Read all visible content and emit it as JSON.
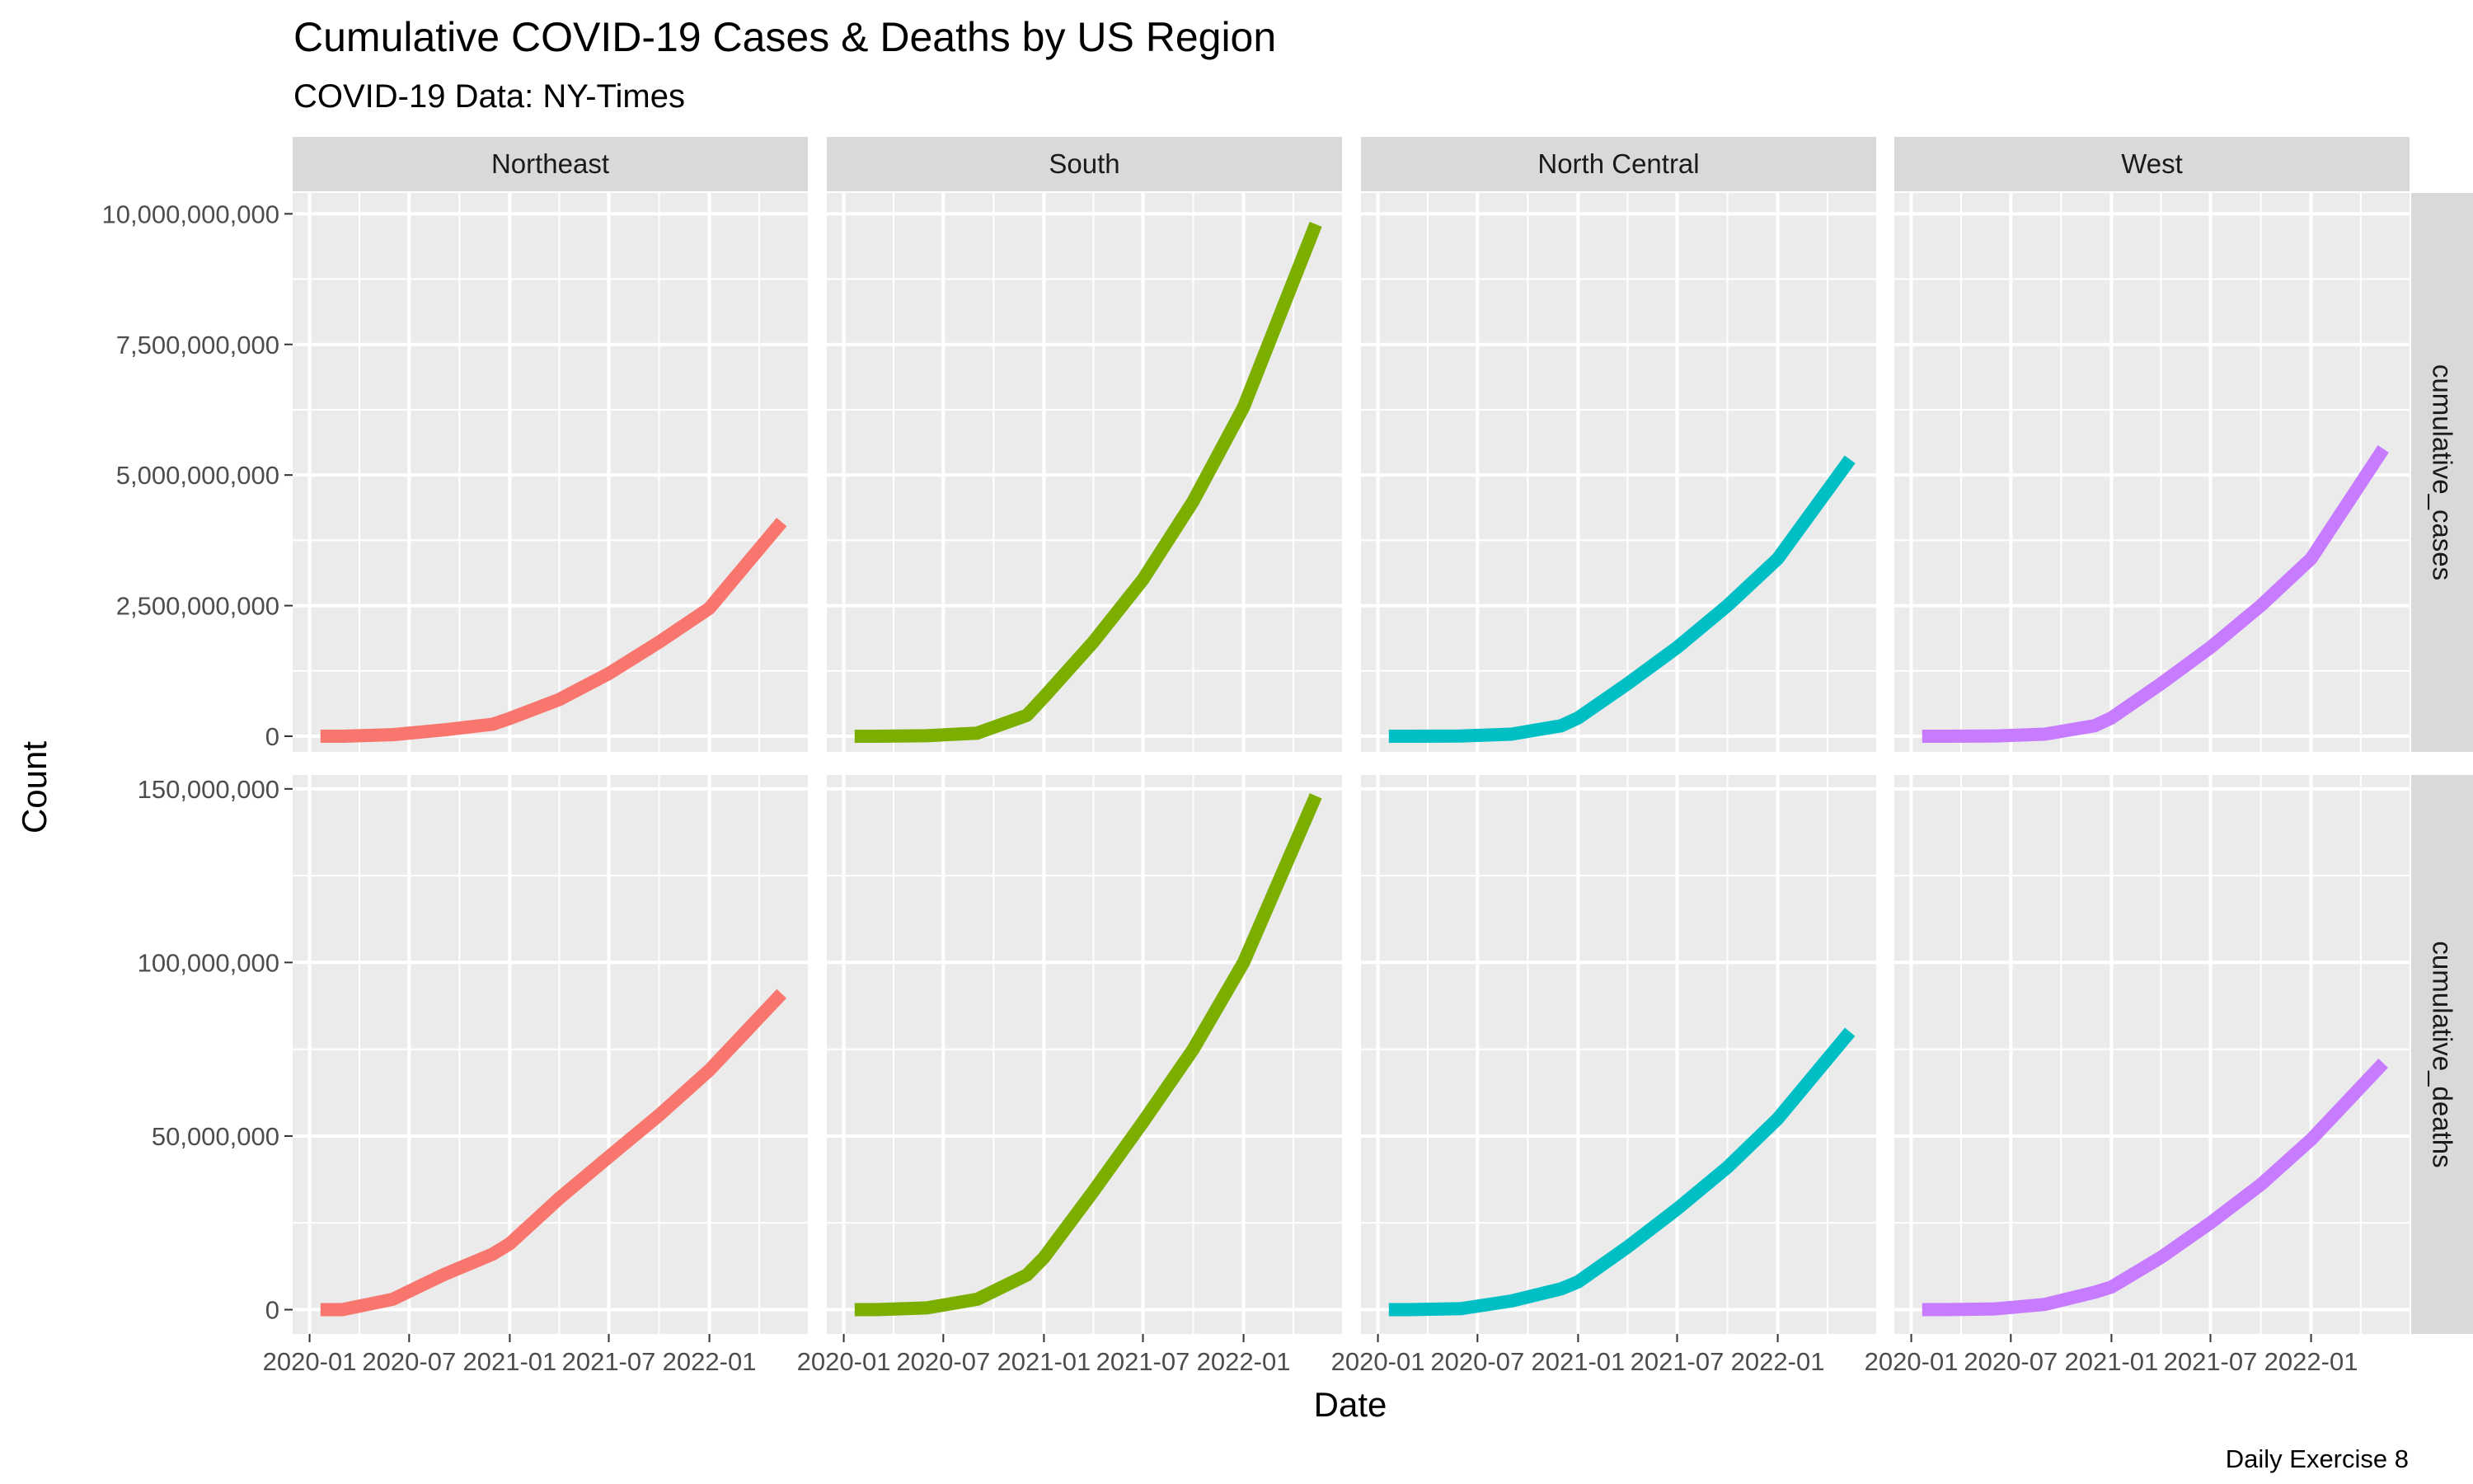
{
  "title": "Cumulative COVID-19 Cases & Deaths by US Region",
  "subtitle": "COVID-19 Data: NY-Times",
  "caption": "Daily Exercise 8",
  "chart_data": {
    "type": "line",
    "facet": {
      "columns": [
        "Northeast",
        "South",
        "North Central",
        "West"
      ],
      "rows": [
        "cumulative_cases",
        "cumulative_deaths"
      ]
    },
    "xlabel": "Date",
    "ylabel": "Count",
    "x_ticks": [
      "2020-01",
      "2020-07",
      "2021-01",
      "2021-07",
      "2022-01"
    ],
    "xlim": [
      "2019-12-01",
      "2022-06-30"
    ],
    "x": [
      "2020-01-21",
      "2020-03-01",
      "2020-06-01",
      "2020-09-01",
      "2020-12-01",
      "2021-01-01",
      "2021-04-01",
      "2021-07-01",
      "2021-10-01",
      "2022-01-01",
      "2022-05-13"
    ],
    "grid": true,
    "legend": "none",
    "colors": {
      "Northeast": "#F8766D",
      "South": "#7CAE00",
      "North Central": "#00BFC4",
      "West": "#C77CFF"
    },
    "panels": [
      {
        "row": "cumulative_cases",
        "ylim": [
          -300000000,
          10400000000
        ],
        "y_ticks": [
          {
            "value": 0,
            "label": "0"
          },
          {
            "value": 2500000000,
            "label": "2,500,000,000"
          },
          {
            "value": 5000000000,
            "label": "5,000,000,000"
          },
          {
            "value": 7500000000,
            "label": "7,500,000,000"
          },
          {
            "value": 10000000000,
            "label": "10,000,000,000"
          }
        ],
        "series": [
          {
            "name": "Northeast",
            "values": [
              0,
              0,
              30000000,
              120000000,
              230000000,
              340000000,
              700000000,
              1200000000,
              1800000000,
              2450000000,
              4100000000
            ]
          },
          {
            "name": "South",
            "values": [
              0,
              0,
              10000000,
              60000000,
              400000000,
              750000000,
              1800000000,
              3000000000,
              4500000000,
              6300000000,
              9800000000
            ]
          },
          {
            "name": "North Central",
            "values": [
              0,
              0,
              5000000,
              40000000,
              200000000,
              350000000,
              1000000000,
              1700000000,
              2500000000,
              3400000000,
              5300000000
            ]
          },
          {
            "name": "West",
            "values": [
              0,
              0,
              5000000,
              40000000,
              200000000,
              350000000,
              1000000000,
              1700000000,
              2500000000,
              3400000000,
              5500000000
            ]
          }
        ]
      },
      {
        "row": "cumulative_deaths",
        "ylim": [
          -7000000,
          154000000
        ],
        "y_ticks": [
          {
            "value": 0,
            "label": "0"
          },
          {
            "value": 50000000,
            "label": "50,000,000"
          },
          {
            "value": 100000000,
            "label": "100,000,000"
          },
          {
            "value": 150000000,
            "label": "150,000,000"
          }
        ],
        "series": [
          {
            "name": "Northeast",
            "values": [
              0,
              0,
              3000000,
              10000000,
              16000000,
              19000000,
              32000000,
              44000000,
              56000000,
              69000000,
              91000000
            ]
          },
          {
            "name": "South",
            "values": [
              0,
              0,
              500000,
              3000000,
              10000000,
              15000000,
              34000000,
              54000000,
              75000000,
              100000000,
              148000000
            ]
          },
          {
            "name": "North Central",
            "values": [
              0,
              0,
              300000,
              2500000,
              6000000,
              8000000,
              18000000,
              29000000,
              41000000,
              55000000,
              80000000
            ]
          },
          {
            "name": "West",
            "values": [
              0,
              0,
              200000,
              1500000,
              5000000,
              6500000,
              15000000,
              25000000,
              36000000,
              49000000,
              71000000
            ]
          }
        ]
      }
    ]
  }
}
